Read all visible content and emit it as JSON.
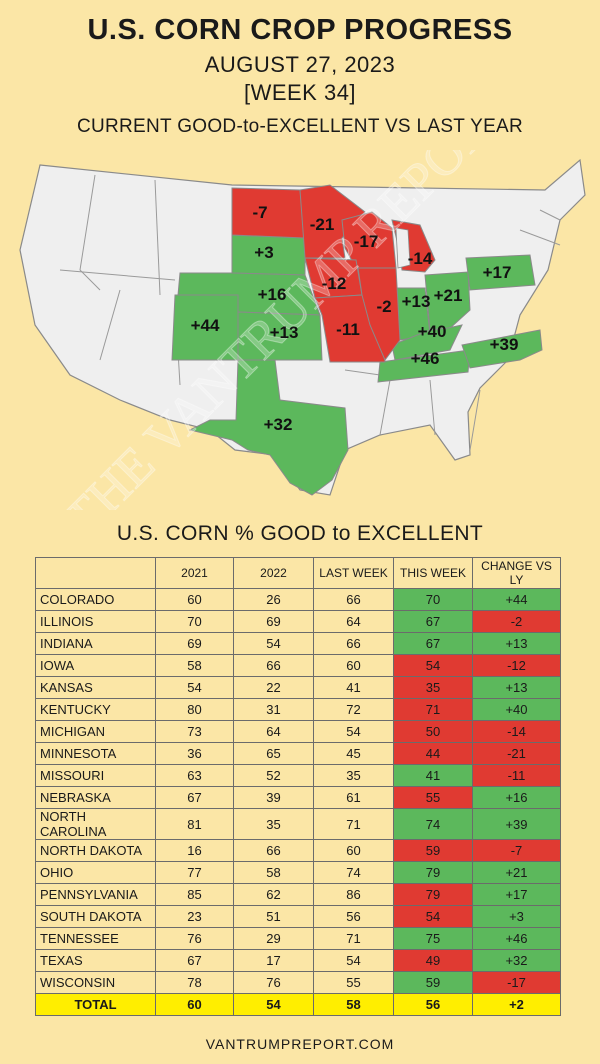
{
  "header": {
    "title": "U.S. CORN CROP PROGRESS",
    "date": "AUGUST 27, 2023",
    "week": "[WEEK 34]",
    "subtitle": "CURRENT GOOD-to-EXCELLENT VS LAST YEAR"
  },
  "map": {
    "watermark": "THE VANTRUMP REPORT",
    "colors": {
      "positive": "#5cb85c",
      "negative": "#e03a32",
      "neutral": "#efefef",
      "border": "#8a8a8a"
    },
    "states": [
      {
        "name": "NORTH DAKOTA",
        "change": "-7"
      },
      {
        "name": "MINNESOTA",
        "change": "-21"
      },
      {
        "name": "WISCONSIN",
        "change": "-17"
      },
      {
        "name": "MICHIGAN",
        "change": "-14"
      },
      {
        "name": "SOUTH DAKOTA",
        "change": "+3"
      },
      {
        "name": "IOWA",
        "change": "-12"
      },
      {
        "name": "NEBRASKA",
        "change": "+16"
      },
      {
        "name": "COLORADO",
        "change": "+44"
      },
      {
        "name": "KANSAS",
        "change": "+13"
      },
      {
        "name": "MISSOURI",
        "change": "-11"
      },
      {
        "name": "ILLINOIS",
        "change": "-2"
      },
      {
        "name": "INDIANA",
        "change": "+13"
      },
      {
        "name": "OHIO",
        "change": "+21"
      },
      {
        "name": "PENNSYLVANIA",
        "change": "+17"
      },
      {
        "name": "KENTUCKY",
        "change": "+40"
      },
      {
        "name": "TENNESSEE",
        "change": "+46"
      },
      {
        "name": "NORTH CAROLINA",
        "change": "+39"
      },
      {
        "name": "TEXAS",
        "change": "+32"
      }
    ]
  },
  "table": {
    "title": "U.S. CORN % GOOD to EXCELLENT",
    "headers": [
      "",
      "2021",
      "2022",
      "LAST WEEK",
      "THIS WEEK",
      "CHANGE VS LY"
    ],
    "rows": [
      [
        "COLORADO",
        "60",
        "26",
        "66",
        "70",
        "+44"
      ],
      [
        "ILLINOIS",
        "70",
        "69",
        "64",
        "67",
        "-2"
      ],
      [
        "INDIANA",
        "69",
        "54",
        "66",
        "67",
        "+13"
      ],
      [
        "IOWA",
        "58",
        "66",
        "60",
        "54",
        "-12"
      ],
      [
        "KANSAS",
        "54",
        "22",
        "41",
        "35",
        "+13"
      ],
      [
        "KENTUCKY",
        "80",
        "31",
        "72",
        "71",
        "+40"
      ],
      [
        "MICHIGAN",
        "73",
        "64",
        "54",
        "50",
        "-14"
      ],
      [
        "MINNESOTA",
        "36",
        "65",
        "45",
        "44",
        "-21"
      ],
      [
        "MISSOURI",
        "63",
        "52",
        "35",
        "41",
        "-11"
      ],
      [
        "NEBRASKA",
        "67",
        "39",
        "61",
        "55",
        "+16"
      ],
      [
        "NORTH CAROLINA",
        "81",
        "35",
        "71",
        "74",
        "+39"
      ],
      [
        "NORTH DAKOTA",
        "16",
        "66",
        "60",
        "59",
        "-7"
      ],
      [
        "OHIO",
        "77",
        "58",
        "74",
        "79",
        "+21"
      ],
      [
        "PENNSYLVANIA",
        "85",
        "62",
        "86",
        "79",
        "+17"
      ],
      [
        "SOUTH DAKOTA",
        "23",
        "51",
        "56",
        "54",
        "+3"
      ],
      [
        "TENNESSEE",
        "76",
        "29",
        "71",
        "75",
        "+46"
      ],
      [
        "TEXAS",
        "67",
        "17",
        "54",
        "49",
        "+32"
      ],
      [
        "WISCONSIN",
        "78",
        "76",
        "55",
        "59",
        "-17"
      ]
    ],
    "this_week_colors": [
      "g",
      "g",
      "g",
      "r",
      "r",
      "r",
      "r",
      "r",
      "g",
      "r",
      "g",
      "r",
      "g",
      "r",
      "r",
      "g",
      "r",
      "g"
    ],
    "change_colors": [
      "g",
      "r",
      "g",
      "r",
      "g",
      "g",
      "r",
      "r",
      "r",
      "g",
      "g",
      "r",
      "g",
      "g",
      "g",
      "g",
      "g",
      "r"
    ],
    "total": [
      "TOTAL",
      "60",
      "54",
      "58",
      "56",
      "+2"
    ]
  },
  "footer": "VANTRUMPREPORT.COM"
}
